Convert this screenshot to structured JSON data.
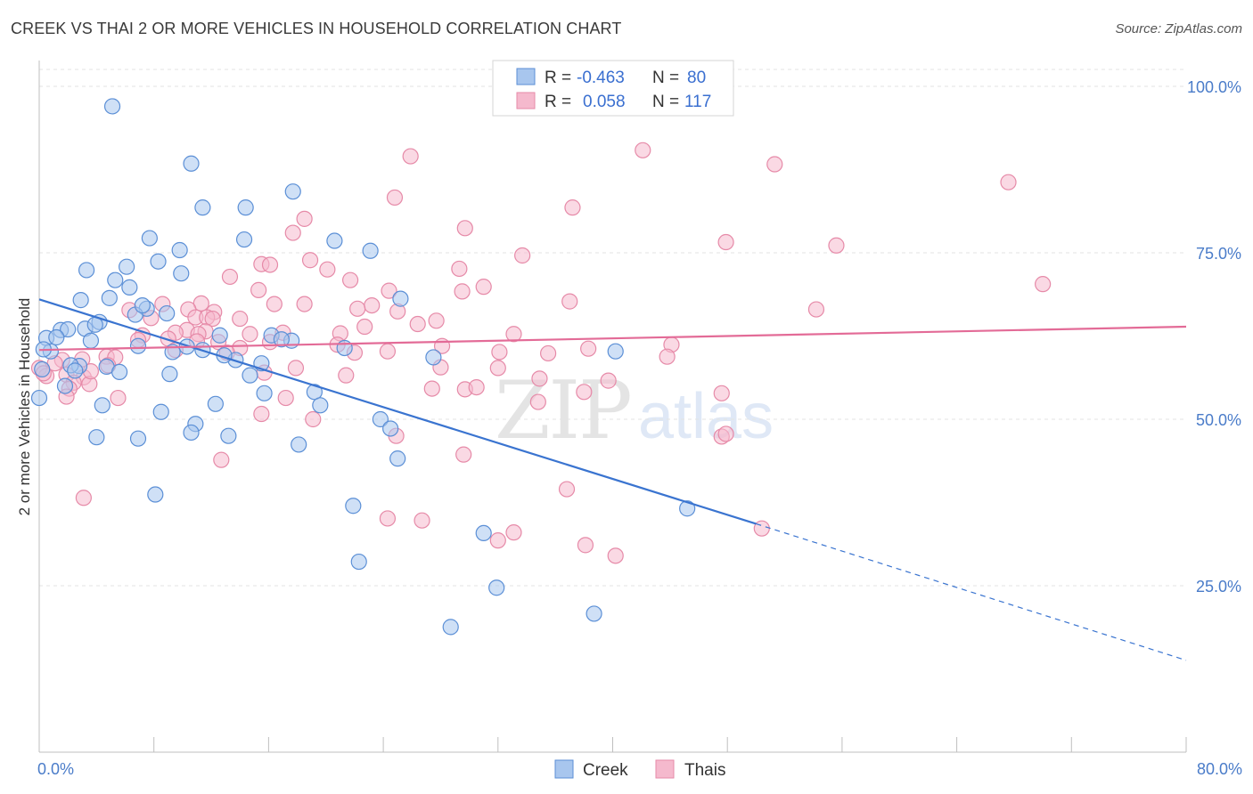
{
  "header": {
    "title": "CREEK VS THAI 2 OR MORE VEHICLES IN HOUSEHOLD CORRELATION CHART",
    "source": "Source: ZipAtlas.com"
  },
  "legend": {
    "rows": [
      {
        "r_label": "R =",
        "r_value": "-0.463",
        "n_label": "N =",
        "n_value": "80"
      },
      {
        "r_label": "R =",
        "r_value": "0.058",
        "n_label": "N =",
        "n_value": "117"
      }
    ]
  },
  "bottom_legend": {
    "creek": "Creek",
    "thais": "Thais"
  },
  "watermark": {
    "zip": "ZIP",
    "atlas": "atlas"
  },
  "colors": {
    "creek_fill": "#a8c6ee",
    "creek_stroke": "#5b8fd6",
    "creek_line": "#3a74d0",
    "thai_fill": "#f5b9cd",
    "thai_stroke": "#e68aa8",
    "thai_line": "#e36b97",
    "tick_text": "#4a7cc9"
  },
  "chart_data": {
    "type": "scatter",
    "title": "CREEK VS THAI 2 OR MORE VEHICLES IN HOUSEHOLD CORRELATION CHART",
    "xlabel": "",
    "ylabel": "2 or more Vehicles in Household",
    "xlim": [
      0,
      80
    ],
    "ylim": [
      0,
      104
    ],
    "x_tick_labels": [
      "0.0%",
      "80.0%"
    ],
    "y_ticks": [
      25,
      50,
      75,
      100
    ],
    "y_tick_labels": [
      "25.0%",
      "50.0%",
      "75.0%",
      "100.0%"
    ],
    "grid": "horizontal dashed",
    "legend_position": "top-center",
    "series": [
      {
        "name": "Creek",
        "R": -0.463,
        "N": 80,
        "trend": {
          "x0": 0,
          "y0": 68.0,
          "x1": 50,
          "y1": 34.3,
          "dashed_to_x": 80,
          "dashed_to_y": 13.8
        },
        "points": [
          [
            5.1,
            97.0
          ],
          [
            10.6,
            88.4
          ],
          [
            17.7,
            84.2
          ],
          [
            11.4,
            81.8
          ],
          [
            14.4,
            81.8
          ],
          [
            7.7,
            77.2
          ],
          [
            14.3,
            77.0
          ],
          [
            20.6,
            76.8
          ],
          [
            9.8,
            75.4
          ],
          [
            23.1,
            75.3
          ],
          [
            8.3,
            73.7
          ],
          [
            6.1,
            72.9
          ],
          [
            3.3,
            72.4
          ],
          [
            9.9,
            71.9
          ],
          [
            5.3,
            70.9
          ],
          [
            6.3,
            69.8
          ],
          [
            2.9,
            67.9
          ],
          [
            4.9,
            68.2
          ],
          [
            25.2,
            68.1
          ],
          [
            7.5,
            66.6
          ],
          [
            6.7,
            65.7
          ],
          [
            8.9,
            65.9
          ],
          [
            4.2,
            64.6
          ],
          [
            3.2,
            63.6
          ],
          [
            1.5,
            63.4
          ],
          [
            2.0,
            63.5
          ],
          [
            0.5,
            62.2
          ],
          [
            1.2,
            62.3
          ],
          [
            3.6,
            61.8
          ],
          [
            16.2,
            62.6
          ],
          [
            12.6,
            62.6
          ],
          [
            17.6,
            61.8
          ],
          [
            6.9,
            61.0
          ],
          [
            10.3,
            60.9
          ],
          [
            11.4,
            60.4
          ],
          [
            21.3,
            60.7
          ],
          [
            0.8,
            60.2
          ],
          [
            40.2,
            60.2
          ],
          [
            27.5,
            59.3
          ],
          [
            13.7,
            58.9
          ],
          [
            15.5,
            58.4
          ],
          [
            2.8,
            58.0
          ],
          [
            2.2,
            58.1
          ],
          [
            4.7,
            57.9
          ],
          [
            5.6,
            57.1
          ],
          [
            9.1,
            56.8
          ],
          [
            14.7,
            56.6
          ],
          [
            1.8,
            55.0
          ],
          [
            0.0,
            53.2
          ],
          [
            15.7,
            53.9
          ],
          [
            19.2,
            54.1
          ],
          [
            4.4,
            52.1
          ],
          [
            12.3,
            52.3
          ],
          [
            19.6,
            52.1
          ],
          [
            8.5,
            51.1
          ],
          [
            23.8,
            50.0
          ],
          [
            10.9,
            49.3
          ],
          [
            24.5,
            48.6
          ],
          [
            10.6,
            48.0
          ],
          [
            13.2,
            47.5
          ],
          [
            4.0,
            47.3
          ],
          [
            6.9,
            47.1
          ],
          [
            18.1,
            46.2
          ],
          [
            25.0,
            44.1
          ],
          [
            8.1,
            38.7
          ],
          [
            21.9,
            37.0
          ],
          [
            45.2,
            36.6
          ],
          [
            31.0,
            32.9
          ],
          [
            22.3,
            28.6
          ],
          [
            31.9,
            24.7
          ],
          [
            38.7,
            20.8
          ],
          [
            28.7,
            18.8
          ],
          [
            0.2,
            57.5
          ],
          [
            0.3,
            60.5
          ],
          [
            3.9,
            64.2
          ],
          [
            7.2,
            67.1
          ],
          [
            9.3,
            60.1
          ],
          [
            12.9,
            59.6
          ],
          [
            16.9,
            62.0
          ],
          [
            2.5,
            57.3
          ]
        ]
      },
      {
        "name": "Thais",
        "R": 0.058,
        "N": 117,
        "trend": {
          "x0": 0,
          "y0": 60.4,
          "x1": 80,
          "y1": 63.9
        },
        "points": [
          [
            42.1,
            90.4
          ],
          [
            25.9,
            89.5
          ],
          [
            51.3,
            88.3
          ],
          [
            67.6,
            85.6
          ],
          [
            24.8,
            83.3
          ],
          [
            37.2,
            81.8
          ],
          [
            18.5,
            80.1
          ],
          [
            29.7,
            78.7
          ],
          [
            17.7,
            78.0
          ],
          [
            47.9,
            76.6
          ],
          [
            55.6,
            76.1
          ],
          [
            33.7,
            74.6
          ],
          [
            18.9,
            73.9
          ],
          [
            15.5,
            73.3
          ],
          [
            16.1,
            73.2
          ],
          [
            20.1,
            72.5
          ],
          [
            29.3,
            72.6
          ],
          [
            13.3,
            71.4
          ],
          [
            21.7,
            70.9
          ],
          [
            70.0,
            70.3
          ],
          [
            31.0,
            69.9
          ],
          [
            15.3,
            69.4
          ],
          [
            24.4,
            69.3
          ],
          [
            29.5,
            69.2
          ],
          [
            37.0,
            67.7
          ],
          [
            11.3,
            67.4
          ],
          [
            16.4,
            67.3
          ],
          [
            18.5,
            67.3
          ],
          [
            23.2,
            67.1
          ],
          [
            8.6,
            67.3
          ],
          [
            6.3,
            66.4
          ],
          [
            10.4,
            66.5
          ],
          [
            12.2,
            66.1
          ],
          [
            25.0,
            66.2
          ],
          [
            54.2,
            66.5
          ],
          [
            22.2,
            66.6
          ],
          [
            10.9,
            65.3
          ],
          [
            11.7,
            65.3
          ],
          [
            12.1,
            65.1
          ],
          [
            7.8,
            65.2
          ],
          [
            14.0,
            65.1
          ],
          [
            27.7,
            64.8
          ],
          [
            26.4,
            64.3
          ],
          [
            22.7,
            63.9
          ],
          [
            10.3,
            63.4
          ],
          [
            11.6,
            63.2
          ],
          [
            9.5,
            63.0
          ],
          [
            17.0,
            63.0
          ],
          [
            11.1,
            62.8
          ],
          [
            7.2,
            62.6
          ],
          [
            33.1,
            62.8
          ],
          [
            21.0,
            62.9
          ],
          [
            14.7,
            62.8
          ],
          [
            9.0,
            62.1
          ],
          [
            11.0,
            61.7
          ],
          [
            12.5,
            61.6
          ],
          [
            16.1,
            61.6
          ],
          [
            20.8,
            61.2
          ],
          [
            28.1,
            61.0
          ],
          [
            44.1,
            61.2
          ],
          [
            38.3,
            60.6
          ],
          [
            14.0,
            60.7
          ],
          [
            9.5,
            60.4
          ],
          [
            13.1,
            60.0
          ],
          [
            22.0,
            60.0
          ],
          [
            24.3,
            60.2
          ],
          [
            32.1,
            60.1
          ],
          [
            35.5,
            59.9
          ],
          [
            43.8,
            59.4
          ],
          [
            4.7,
            59.4
          ],
          [
            5.3,
            59.3
          ],
          [
            1.6,
            58.9
          ],
          [
            3.0,
            59.0
          ],
          [
            4.8,
            58.1
          ],
          [
            0.0,
            57.7
          ],
          [
            28.0,
            57.8
          ],
          [
            17.9,
            57.7
          ],
          [
            32.0,
            57.7
          ],
          [
            15.7,
            57.0
          ],
          [
            1.9,
            56.7
          ],
          [
            3.1,
            56.3
          ],
          [
            0.5,
            56.5
          ],
          [
            2.4,
            55.5
          ],
          [
            21.4,
            56.6
          ],
          [
            34.9,
            56.1
          ],
          [
            39.7,
            55.8
          ],
          [
            3.5,
            55.3
          ],
          [
            2.1,
            54.6
          ],
          [
            27.4,
            54.6
          ],
          [
            29.7,
            54.5
          ],
          [
            30.5,
            54.8
          ],
          [
            38.0,
            54.1
          ],
          [
            47.6,
            53.9
          ],
          [
            1.9,
            53.4
          ],
          [
            5.5,
            53.2
          ],
          [
            17.2,
            53.2
          ],
          [
            34.8,
            52.6
          ],
          [
            15.5,
            50.8
          ],
          [
            19.1,
            50.0
          ],
          [
            47.6,
            47.4
          ],
          [
            47.9,
            47.8
          ],
          [
            24.9,
            47.5
          ],
          [
            29.6,
            44.7
          ],
          [
            12.7,
            43.9
          ],
          [
            36.8,
            39.5
          ],
          [
            3.1,
            38.2
          ],
          [
            24.3,
            35.1
          ],
          [
            26.7,
            34.8
          ],
          [
            33.1,
            33.0
          ],
          [
            50.4,
            33.6
          ],
          [
            32.0,
            31.8
          ],
          [
            38.1,
            31.1
          ],
          [
            40.2,
            29.5
          ],
          [
            0.3,
            56.9
          ],
          [
            1.1,
            58.4
          ],
          [
            6.9,
            61.9
          ],
          [
            3.6,
            57.2
          ]
        ]
      }
    ]
  }
}
